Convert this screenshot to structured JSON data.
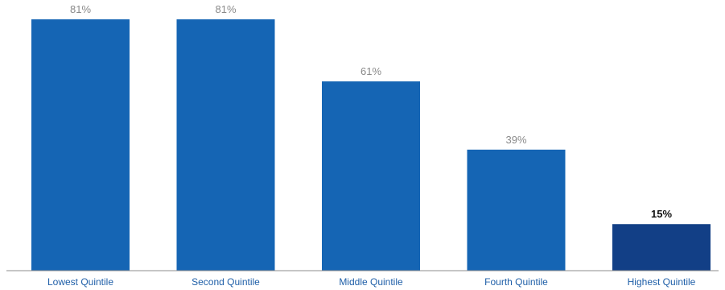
{
  "chart_data": {
    "type": "bar",
    "categories": [
      "Lowest Quintile",
      "Second Quintile",
      "Middle Quintile",
      "Fourth Quintile",
      "Highest Quintile"
    ],
    "values": [
      81,
      81,
      61,
      39,
      15
    ],
    "value_labels": [
      "81%",
      "81%",
      "61%",
      "39%",
      "15%"
    ],
    "highlight_index": 4,
    "ylim": [
      0,
      81
    ],
    "grid": false,
    "colors": {
      "bar": "#1565b4",
      "highlight_bar": "#123f86",
      "baseline": "#8c8c8c",
      "category_label": "#1f5fa8"
    }
  }
}
